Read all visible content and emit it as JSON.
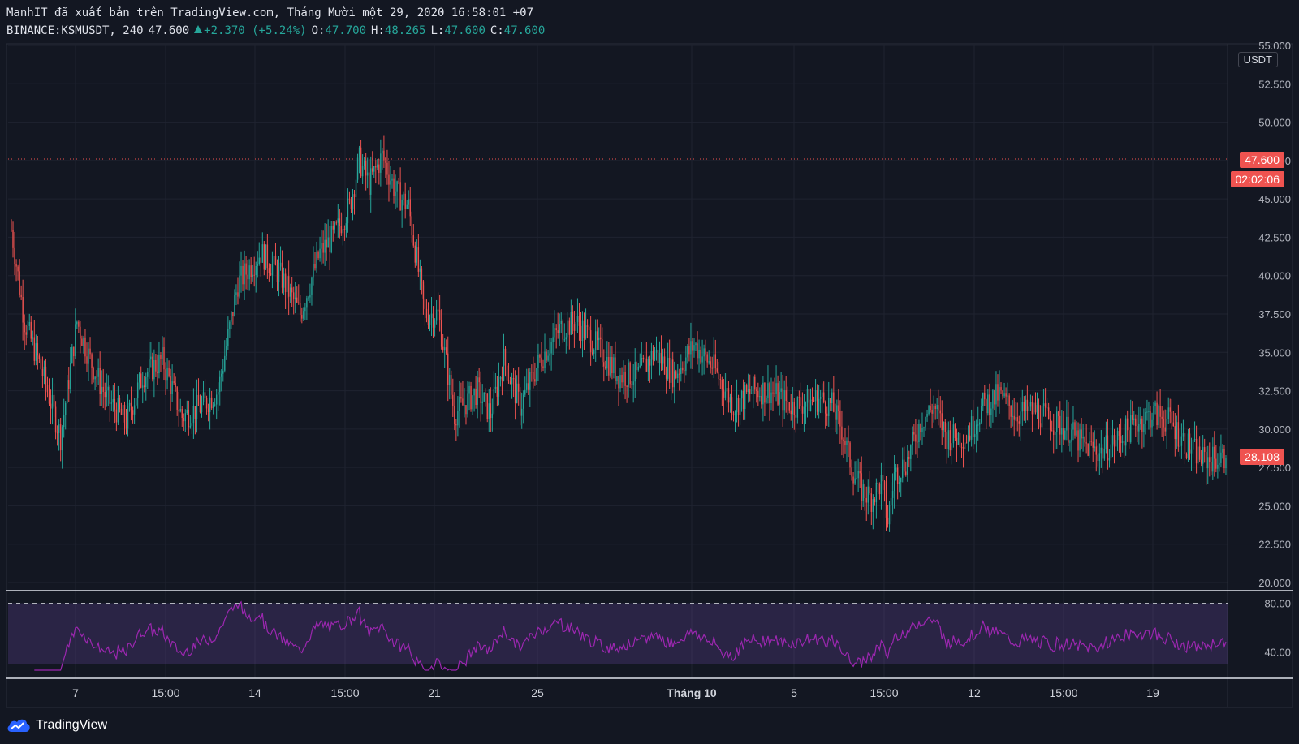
{
  "header": {
    "line1": "ManhIT đã xuất bản trên TradingView.com, Tháng Mười một 29, 2020 16:58:01 +07",
    "symbol": "BINANCE:KSMUSDT, 240",
    "last": "47.600",
    "change": "+2.370 (+5.24%)",
    "o_label": "O:",
    "o_val": "47.700",
    "h_label": "H:",
    "h_val": "48.265",
    "l_label": "L:",
    "l_val": "47.600",
    "c_label": "C:",
    "c_val": "47.600"
  },
  "price_tags": {
    "current_price": "47.600",
    "countdown": "02:02:06",
    "last_close": "28.108"
  },
  "unit_label": "USDT",
  "brand": "TradingView",
  "colors": {
    "up": "#26a69a",
    "down": "#ef5350",
    "rsi": "#9c27b0",
    "background": "#131722"
  },
  "chart_data": {
    "type": "candlestick",
    "y_ticks": [
      "55.000",
      "52.500",
      "50.000",
      "47.500",
      "45.000",
      "42.500",
      "40.000",
      "37.500",
      "35.000",
      "32.500",
      "30.000",
      "27.500",
      "25.000",
      "22.500",
      "20.000"
    ],
    "ylim": [
      20,
      55
    ],
    "x_ticks": [
      "7",
      "15:00",
      "14",
      "15:00",
      "21",
      "25",
      "Tháng 10",
      "5",
      "15:00",
      "12",
      "15:00",
      "19"
    ],
    "grid": true,
    "current_price_line": 47.6,
    "price_path": [
      [
        0,
        43
      ],
      [
        8,
        37
      ],
      [
        18,
        34
      ],
      [
        30,
        29.5
      ],
      [
        40,
        37
      ],
      [
        48,
        34.5
      ],
      [
        58,
        32
      ],
      [
        70,
        30.5
      ],
      [
        80,
        33.5
      ],
      [
        92,
        34.5
      ],
      [
        104,
        30.8
      ],
      [
        116,
        31.5
      ],
      [
        126,
        32.5
      ],
      [
        138,
        39.5
      ],
      [
        152,
        41.5
      ],
      [
        164,
        40
      ],
      [
        176,
        37.5
      ],
      [
        188,
        41.5
      ],
      [
        196,
        42.5
      ],
      [
        206,
        44.5
      ],
      [
        212,
        47.5
      ],
      [
        218,
        46
      ],
      [
        226,
        47.8
      ],
      [
        234,
        45.5
      ],
      [
        242,
        44.5
      ],
      [
        252,
        37.5
      ],
      [
        260,
        37.5
      ],
      [
        270,
        31
      ],
      [
        284,
        32.5
      ],
      [
        292,
        31
      ],
      [
        300,
        34.5
      ],
      [
        310,
        31.5
      ],
      [
        322,
        34.5
      ],
      [
        334,
        36.5
      ],
      [
        344,
        37
      ],
      [
        356,
        35.5
      ],
      [
        370,
        33.5
      ],
      [
        382,
        33.5
      ],
      [
        392,
        35
      ],
      [
        404,
        33.5
      ],
      [
        416,
        35.5
      ],
      [
        428,
        34
      ],
      [
        440,
        31.5
      ],
      [
        452,
        32.5
      ],
      [
        462,
        32.5
      ],
      [
        476,
        31.5
      ],
      [
        492,
        32
      ],
      [
        500,
        31.5
      ],
      [
        506,
        30
      ],
      [
        512,
        27.5
      ],
      [
        518,
        26
      ],
      [
        524,
        25.5
      ],
      [
        530,
        26.5
      ],
      [
        534,
        24
      ],
      [
        538,
        27
      ],
      [
        546,
        28
      ],
      [
        554,
        30.5
      ],
      [
        562,
        31.5
      ],
      [
        570,
        29.5
      ],
      [
        582,
        29.5
      ],
      [
        592,
        31.5
      ],
      [
        602,
        32.2
      ],
      [
        612,
        31
      ],
      [
        624,
        31.2
      ],
      [
        634,
        30.5
      ],
      [
        644,
        30
      ],
      [
        652,
        29
      ],
      [
        664,
        28.5
      ],
      [
        676,
        29.5
      ],
      [
        686,
        30.5
      ],
      [
        696,
        31
      ],
      [
        706,
        30.5
      ],
      [
        716,
        29
      ],
      [
        726,
        28
      ],
      [
        740,
        28.1
      ]
    ],
    "rsi": {
      "overbought": 80,
      "oversold": 30,
      "ylim": [
        25,
        85
      ],
      "tick_labels": [
        "80.00",
        "40.00"
      ]
    }
  }
}
